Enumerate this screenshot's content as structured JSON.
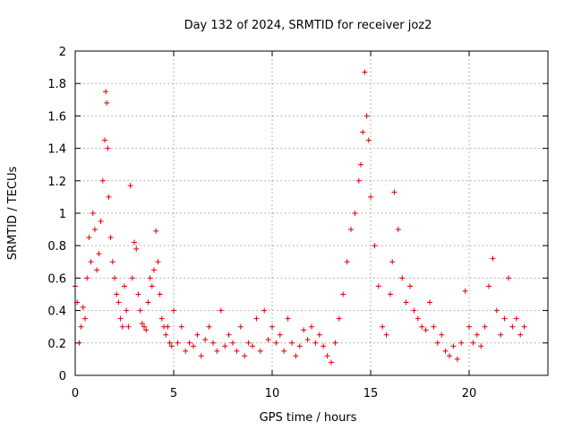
{
  "chart_data": {
    "type": "scatter",
    "title": "Day 132 of 2024, SRMTID for receiver joz2",
    "xlabel": "GPS time / hours",
    "ylabel": "SRMTID / TECUs",
    "xlim": [
      0,
      24
    ],
    "ylim": [
      0,
      2
    ],
    "xticks": [
      0,
      5,
      10,
      15,
      20
    ],
    "yticks": [
      0,
      0.2,
      0.4,
      0.6,
      0.8,
      1,
      1.2,
      1.4,
      1.6,
      1.8,
      2
    ],
    "xtick_labels": [
      "0",
      "5",
      "10",
      "15",
      "20"
    ],
    "ytick_labels": [
      "0",
      "0.2",
      "0.4",
      "0.6",
      "0.8",
      "1",
      "1.2",
      "1.4",
      "1.6",
      "1.8",
      "2"
    ],
    "grid": true,
    "marker": "+",
    "color": "#dd0000",
    "series": [
      {
        "name": "SRMTID",
        "x": [
          0.0,
          0.1,
          0.2,
          0.3,
          0.4,
          0.5,
          0.6,
          0.7,
          0.8,
          0.9,
          1.0,
          1.1,
          1.2,
          1.3,
          1.4,
          1.5,
          1.55,
          1.6,
          1.65,
          1.7,
          1.8,
          1.9,
          2.0,
          2.1,
          2.2,
          2.3,
          2.4,
          2.5,
          2.6,
          2.7,
          2.8,
          2.9,
          3.0,
          3.1,
          3.2,
          3.3,
          3.4,
          3.5,
          3.6,
          3.7,
          3.8,
          3.9,
          4.0,
          4.1,
          4.2,
          4.3,
          4.4,
          4.5,
          4.6,
          4.7,
          4.8,
          4.9,
          5.0,
          5.2,
          5.4,
          5.6,
          5.8,
          6.0,
          6.2,
          6.4,
          6.6,
          6.8,
          7.0,
          7.2,
          7.4,
          7.6,
          7.8,
          8.0,
          8.2,
          8.4,
          8.6,
          8.8,
          9.0,
          9.2,
          9.4,
          9.6,
          9.8,
          10.0,
          10.2,
          10.4,
          10.6,
          10.8,
          11.0,
          11.2,
          11.4,
          11.6,
          11.8,
          12.0,
          12.2,
          12.4,
          12.6,
          12.8,
          13.0,
          13.2,
          13.4,
          13.6,
          13.8,
          14.0,
          14.2,
          14.4,
          14.5,
          14.6,
          14.7,
          14.8,
          14.9,
          15.0,
          15.2,
          15.4,
          15.6,
          15.8,
          16.0,
          16.1,
          16.2,
          16.4,
          16.6,
          16.8,
          17.0,
          17.2,
          17.4,
          17.6,
          17.8,
          18.0,
          18.2,
          18.4,
          18.6,
          18.8,
          19.0,
          19.2,
          19.4,
          19.6,
          19.8,
          20.0,
          20.2,
          20.4,
          20.6,
          20.8,
          21.0,
          21.2,
          21.4,
          21.6,
          21.8,
          22.0,
          22.2,
          22.4,
          22.6,
          22.8
        ],
        "y": [
          0.55,
          0.45,
          0.2,
          0.3,
          0.42,
          0.35,
          0.6,
          0.85,
          0.7,
          1.0,
          0.9,
          0.65,
          0.75,
          0.95,
          1.2,
          1.45,
          1.75,
          1.68,
          1.4,
          1.1,
          0.85,
          0.7,
          0.6,
          0.5,
          0.45,
          0.35,
          0.3,
          0.55,
          0.4,
          0.3,
          1.17,
          0.6,
          0.82,
          0.78,
          0.5,
          0.4,
          0.32,
          0.3,
          0.28,
          0.45,
          0.6,
          0.55,
          0.65,
          0.89,
          0.7,
          0.5,
          0.35,
          0.3,
          0.25,
          0.3,
          0.2,
          0.18,
          0.4,
          0.2,
          0.3,
          0.15,
          0.2,
          0.18,
          0.25,
          0.12,
          0.22,
          0.3,
          0.2,
          0.15,
          0.4,
          0.18,
          0.25,
          0.2,
          0.15,
          0.3,
          0.12,
          0.2,
          0.18,
          0.35,
          0.15,
          0.4,
          0.22,
          0.3,
          0.2,
          0.25,
          0.15,
          0.35,
          0.2,
          0.12,
          0.18,
          0.28,
          0.22,
          0.3,
          0.2,
          0.25,
          0.18,
          0.12,
          0.08,
          0.2,
          0.35,
          0.5,
          0.7,
          0.9,
          1.0,
          1.2,
          1.3,
          1.5,
          1.87,
          1.6,
          1.45,
          1.1,
          0.8,
          0.55,
          0.3,
          0.25,
          0.5,
          0.7,
          1.13,
          0.9,
          0.6,
          0.45,
          0.55,
          0.4,
          0.35,
          0.3,
          0.28,
          0.45,
          0.3,
          0.2,
          0.25,
          0.15,
          0.12,
          0.18,
          0.1,
          0.2,
          0.52,
          0.3,
          0.2,
          0.25,
          0.18,
          0.3,
          0.55,
          0.72,
          0.4,
          0.25,
          0.35,
          0.6,
          0.3,
          0.35,
          0.25,
          0.3
        ]
      }
    ]
  }
}
